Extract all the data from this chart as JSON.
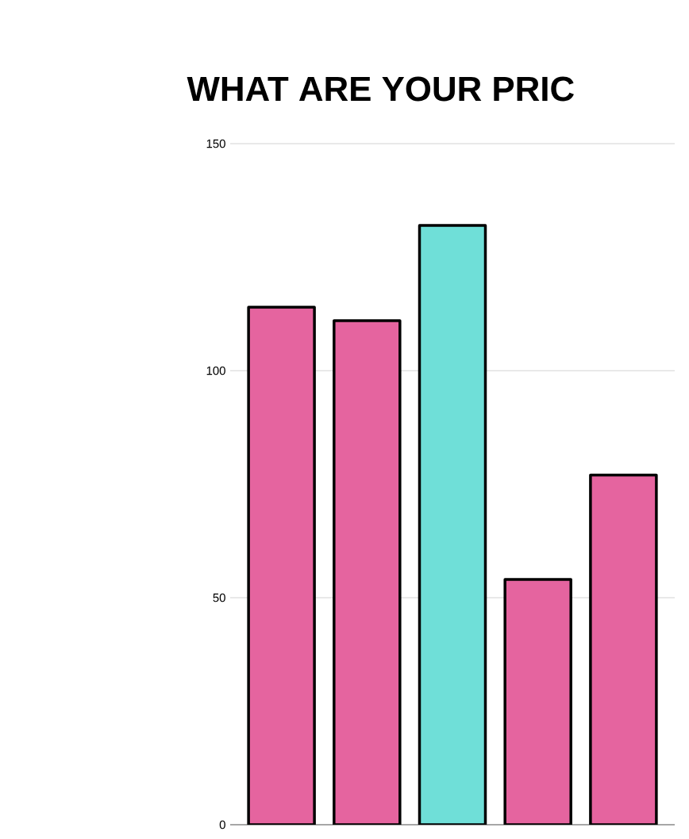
{
  "chart_data": {
    "type": "bar",
    "title": "WHAT ARE YOUR PRIC",
    "categories": [
      null,
      null,
      null,
      null,
      null
    ],
    "values": [
      114,
      111,
      132,
      54,
      77
    ],
    "colors": [
      "#e5649f",
      "#e5649f",
      "#6fdfd8",
      "#e5649f",
      "#e5649f"
    ],
    "ylim": [
      0,
      150
    ],
    "yticks": [
      0,
      50,
      100,
      150
    ],
    "grid": "y"
  }
}
